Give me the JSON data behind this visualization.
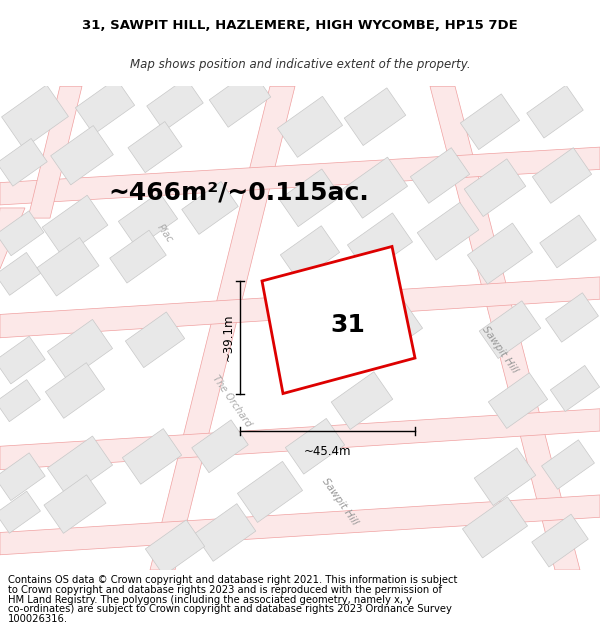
{
  "title_line1": "31, SAWPIT HILL, HAZLEMERE, HIGH WYCOMBE, HP15 7DE",
  "title_line2": "Map shows position and indicative extent of the property.",
  "area_text": "~466m²/~0.115ac.",
  "label_31": "31",
  "dim_width": "~45.4m",
  "dim_height": "~39.1m",
  "footer_lines": [
    "Contains OS data © Crown copyright and database right 2021. This information is subject",
    "to Crown copyright and database rights 2023 and is reproduced with the permission of",
    "HM Land Registry. The polygons (including the associated geometry, namely x, y",
    "co-ordinates) are subject to Crown copyright and database rights 2023 Ordnance Survey",
    "100026316."
  ],
  "map_bg": "#faf7f7",
  "plot_bg": "#ffffff",
  "road_line_color": "#f0a0a0",
  "block_fill": "#e8e8e8",
  "block_edge": "#c8c8c8",
  "red_plot_color": "#dd0000",
  "title_fontsize": 9.5,
  "subtitle_fontsize": 8.5,
  "area_fontsize": 18,
  "label_31_fontsize": 18,
  "dim_fontsize": 8.5,
  "road_fontsize": 7.5,
  "footer_fontsize": 7.2,
  "road_lw": 0.8
}
